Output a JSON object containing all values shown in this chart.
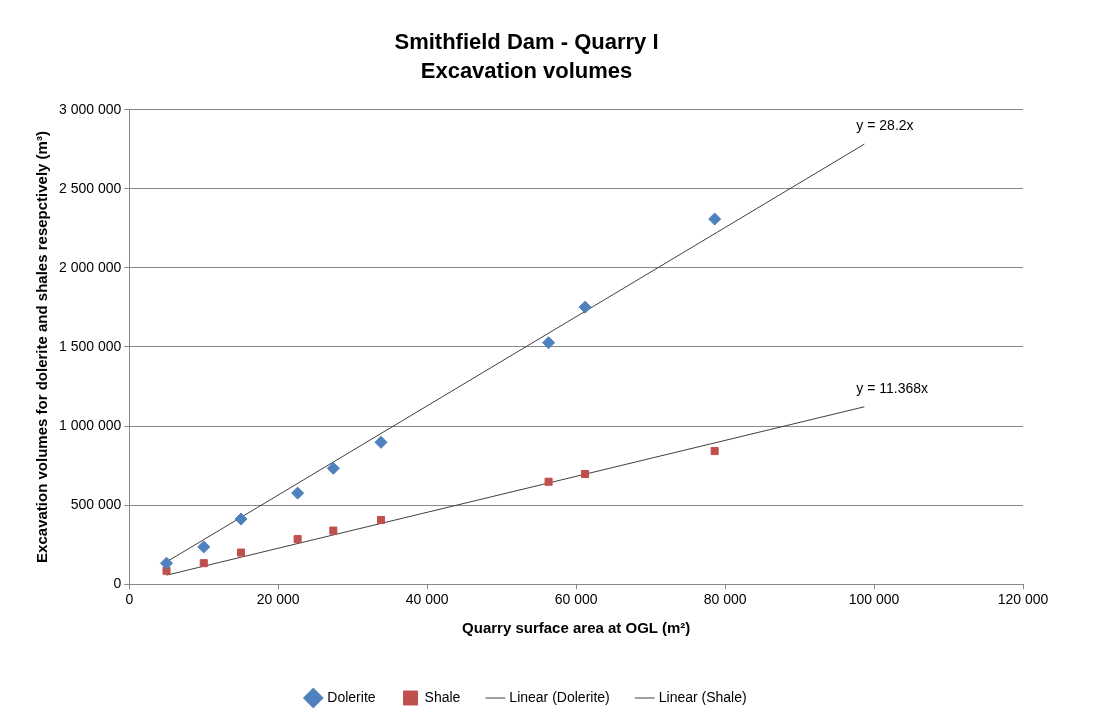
{
  "chart_data": {
    "type": "scatter",
    "title": "Smithfield Dam - Quarry I",
    "subtitle": "Excavation volumes",
    "xlabel": "Quarry surface area at OGL (m²)",
    "ylabel": "Excavation volumes for dolerite and shales resepctively (m³)",
    "xlim": [
      0,
      120000
    ],
    "xticks": [
      {
        "value": 0,
        "label": "0"
      },
      {
        "value": 20000,
        "label": "20 000"
      },
      {
        "value": 40000,
        "label": "40 000"
      },
      {
        "value": 60000,
        "label": "60 000"
      },
      {
        "value": 80000,
        "label": "80 000"
      },
      {
        "value": 100000,
        "label": "100 000"
      },
      {
        "value": 120000,
        "label": "120 000"
      }
    ],
    "ylim": [
      0,
      3000000
    ],
    "yticks": [
      {
        "value": 0,
        "label": "0"
      },
      {
        "value": 500000,
        "label": "500 000"
      },
      {
        "value": 1000000,
        "label": "1 000 000"
      },
      {
        "value": 1500000,
        "label": "1 500 000"
      },
      {
        "value": 2000000,
        "label": "2 000 000"
      },
      {
        "value": 2500000,
        "label": "2 500 000"
      },
      {
        "value": 3000000,
        "label": "3 000 000"
      }
    ],
    "grid": "y",
    "legend": "bottom",
    "series": [
      {
        "name": "Dolerite",
        "marker": "diamond",
        "color": "#4f81bd",
        "x": [
          5000,
          10000,
          15000,
          22600,
          27400,
          33800,
          56300,
          61200,
          78600
        ],
        "values": [
          133000,
          236000,
          412000,
          576000,
          733000,
          897000,
          1527000,
          1752000,
          2309000
        ]
      },
      {
        "name": "Shale",
        "marker": "square",
        "color": "#c0504d",
        "x": [
          5000,
          10000,
          15000,
          22600,
          27400,
          33800,
          56300,
          61200,
          78600
        ],
        "values": [
          85000,
          133000,
          200000,
          285000,
          339000,
          406000,
          648000,
          697000,
          842000
        ]
      },
      {
        "name": "Linear (Dolerite)",
        "type": "line",
        "marker": "none",
        "color": "#404040",
        "x": [
          5000,
          98700
        ],
        "values": [
          141000,
          2783000
        ]
      },
      {
        "name": "Linear (Shale)",
        "type": "line",
        "marker": "none",
        "color": "#404040",
        "x": [
          5000,
          98700
        ],
        "values": [
          57000,
          1122000
        ]
      }
    ],
    "annotations": [
      {
        "text": "y = 28.2x",
        "x": 98700,
        "y": 2783000
      },
      {
        "text": "y = 11.368x",
        "x": 98700,
        "y": 1122000
      }
    ]
  }
}
